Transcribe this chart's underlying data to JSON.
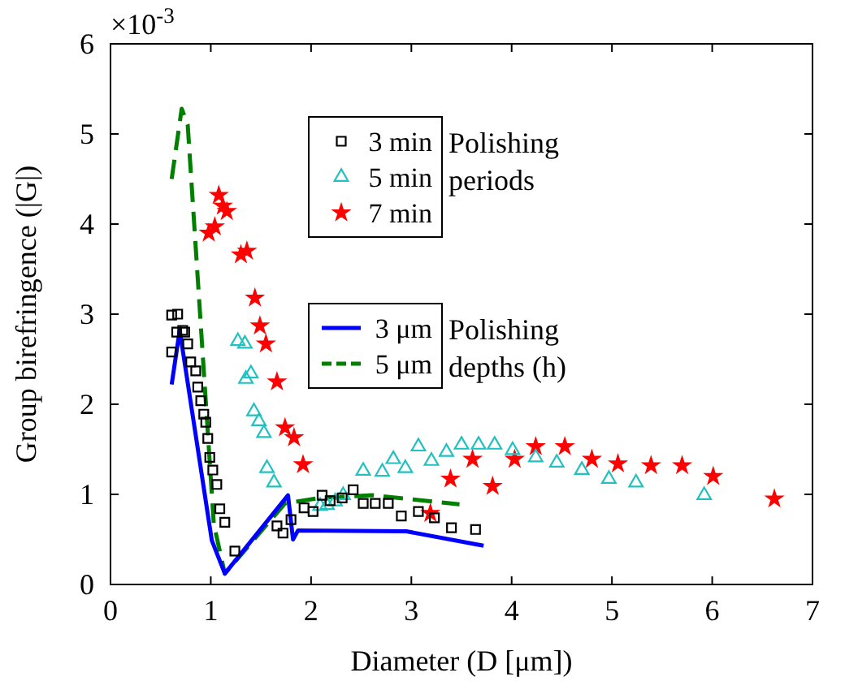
{
  "chart_data": {
    "type": "scatter",
    "xlabel": "Diameter (D [μm])",
    "ylabel": "Group birefringence (|G|)",
    "xlim": [
      0,
      7
    ],
    "xticks": [
      0,
      1,
      2,
      3,
      4,
      5,
      6,
      7
    ],
    "ylim": [
      0,
      6
    ],
    "yticks": [
      0,
      1,
      2,
      3,
      4,
      5,
      6
    ],
    "grid": false,
    "legend": "top",
    "annotations": [
      "×10$^{-3}$",
      "Polishing periods",
      "Polishing depths (h)"
    ],
    "series": [
      {
        "name": "3 min",
        "marker": "square",
        "color": "#000000",
        "x": [
          0.61,
          0.61,
          0.67,
          0.66,
          0.72,
          0.74,
          0.77,
          0.8,
          0.85,
          0.87,
          0.9,
          0.93,
          0.95,
          0.97,
          0.99,
          1.02,
          1.06,
          1.09,
          1.14,
          1.24,
          1.66,
          1.72,
          1.8,
          1.93,
          2.02,
          2.11,
          2.19,
          2.31,
          2.42,
          2.52,
          2.64,
          2.77,
          2.9,
          3.07,
          3.23,
          3.4,
          3.64
        ],
        "values": [
          2.58,
          2.99,
          3.0,
          2.8,
          2.82,
          2.8,
          2.67,
          2.47,
          2.37,
          2.19,
          2.04,
          1.89,
          1.8,
          1.62,
          1.41,
          1.27,
          1.11,
          0.84,
          0.69,
          0.37,
          0.65,
          0.57,
          0.72,
          0.85,
          0.81,
          0.99,
          0.93,
          0.96,
          1.05,
          0.9,
          0.9,
          0.9,
          0.76,
          0.81,
          0.74,
          0.63,
          0.61
        ]
      },
      {
        "name": "5 min",
        "marker": "triangle",
        "color": "#22c0c0",
        "x": [
          1.27,
          1.34,
          1.35,
          1.4,
          1.43,
          1.48,
          1.53,
          1.56,
          1.63,
          2.09,
          2.16,
          2.24,
          2.32,
          2.52,
          2.71,
          2.82,
          2.94,
          3.07,
          3.2,
          3.35,
          3.5,
          3.67,
          3.83,
          4.01,
          4.24,
          4.45,
          4.7,
          4.97,
          5.24,
          5.92
        ],
        "values": [
          2.7,
          2.67,
          2.28,
          2.34,
          1.92,
          1.81,
          1.68,
          1.29,
          1.13,
          0.87,
          0.88,
          0.92,
          0.99,
          1.26,
          1.25,
          1.39,
          1.29,
          1.53,
          1.37,
          1.47,
          1.55,
          1.55,
          1.55,
          1.49,
          1.41,
          1.35,
          1.27,
          1.17,
          1.13,
          0.99
        ]
      },
      {
        "name": "7 min",
        "marker": "star",
        "color": "#ff0000",
        "x": [
          0.98,
          1.04,
          1.08,
          1.12,
          1.16,
          1.3,
          1.36,
          1.44,
          1.49,
          1.55,
          1.66,
          1.74,
          1.83,
          1.92,
          3.19,
          3.39,
          3.61,
          3.81,
          4.03,
          4.24,
          4.53,
          4.8,
          5.06,
          5.39,
          5.7,
          6.01,
          6.62
        ],
        "values": [
          3.9,
          3.97,
          4.32,
          4.2,
          4.14,
          3.66,
          3.7,
          3.18,
          2.87,
          2.67,
          2.25,
          1.74,
          1.63,
          1.33,
          0.79,
          1.17,
          1.39,
          1.09,
          1.39,
          1.53,
          1.53,
          1.39,
          1.34,
          1.32,
          1.32,
          1.2,
          0.95
        ]
      },
      {
        "name": "3 μm",
        "type": "line",
        "marker": "none",
        "line_style": "solid",
        "color": "#0000ff",
        "x": [
          0.61,
          0.69,
          1.01,
          1.14,
          1.77,
          1.82,
          1.87,
          2.95,
          3.72
        ],
        "values": [
          2.22,
          2.82,
          0.49,
          0.12,
          0.99,
          0.5,
          0.6,
          0.59,
          0.43
        ]
      },
      {
        "name": "5 μm",
        "type": "line",
        "marker": "none",
        "line_style": "dashed",
        "color": "#007f00",
        "x": [
          0.61,
          0.71,
          0.77,
          1.03,
          1.14,
          1.74,
          2.09,
          2.61,
          3.48
        ],
        "values": [
          4.5,
          5.28,
          5.1,
          0.67,
          0.12,
          0.9,
          0.96,
          0.99,
          0.89
        ]
      }
    ]
  }
}
